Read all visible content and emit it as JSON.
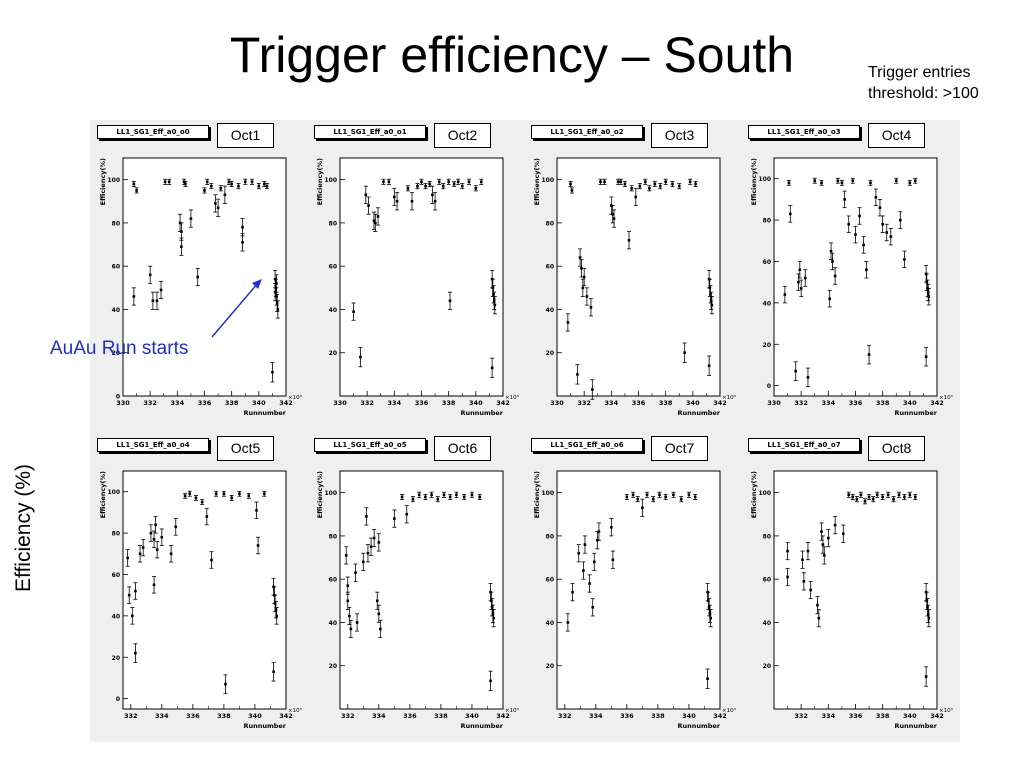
{
  "title": "Trigger efficiency – South",
  "note_lines": [
    "Trigger entries",
    "threshold: >100"
  ],
  "ylabel_slide": "Efficiency (%)",
  "annotation": {
    "text": "AuAu Run starts",
    "color": "#1f2fc8"
  },
  "colors": {
    "marker": "#000000",
    "frame": "#000000",
    "pad_bg": "#ffffff",
    "canvas_bg": "#efefef"
  },
  "chart_data": [
    {
      "type": "scatter",
      "name": "LL1_SG1_Eff_a0_o0",
      "label": "Oct1",
      "ylabel": "Efficiency(%)",
      "xlabel": "Runnumber",
      "x_multiplier": "×10³",
      "xlim": [
        330,
        342
      ],
      "ylim": [
        0,
        110
      ],
      "xticks": [
        330,
        332,
        334,
        336,
        338,
        340,
        342
      ],
      "yticks": [
        0,
        20,
        40,
        60,
        80,
        100
      ],
      "points": [
        [
          330.8,
          98
        ],
        [
          331.0,
          95
        ],
        [
          332.0,
          56
        ],
        [
          332.2,
          44
        ],
        [
          332.5,
          44
        ],
        [
          332.8,
          49
        ],
        [
          330.8,
          46
        ],
        [
          333.1,
          99
        ],
        [
          333.4,
          99
        ],
        [
          334.2,
          80
        ],
        [
          334.3,
          76
        ],
        [
          334.3,
          69
        ],
        [
          334.5,
          99
        ],
        [
          334.6,
          98
        ],
        [
          335.0,
          82
        ],
        [
          335.5,
          55
        ],
        [
          336.0,
          95
        ],
        [
          336.2,
          99
        ],
        [
          336.5,
          97
        ],
        [
          336.8,
          89
        ],
        [
          337.0,
          87
        ],
        [
          337.2,
          96
        ],
        [
          337.5,
          93
        ],
        [
          337.8,
          99
        ],
        [
          338.0,
          98
        ],
        [
          338.5,
          97
        ],
        [
          338.8,
          78
        ],
        [
          338.8,
          71
        ],
        [
          339.0,
          99
        ],
        [
          339.5,
          99
        ],
        [
          340.0,
          97
        ],
        [
          340.4,
          98
        ],
        [
          340.6,
          97
        ],
        [
          341.2,
          54
        ],
        [
          341.25,
          50
        ],
        [
          341.3,
          46
        ],
        [
          341.35,
          43
        ],
        [
          341.4,
          40
        ],
        [
          341.2,
          48
        ],
        [
          341.3,
          52
        ],
        [
          341.0,
          11
        ]
      ]
    },
    {
      "type": "scatter",
      "name": "LL1_SG1_Eff_a0_o1",
      "label": "Oct2",
      "ylabel": "Efficiency(%)",
      "xlabel": "Runnumber",
      "x_multiplier": "×10³",
      "xlim": [
        330,
        342
      ],
      "ylim": [
        0,
        110
      ],
      "xticks": [
        330,
        332,
        334,
        336,
        338,
        340,
        342
      ],
      "yticks": [
        20,
        40,
        60,
        80,
        100
      ],
      "points": [
        [
          331.0,
          39
        ],
        [
          331.5,
          18
        ],
        [
          331.9,
          93
        ],
        [
          332.1,
          88
        ],
        [
          332.5,
          81
        ],
        [
          332.6,
          80
        ],
        [
          332.8,
          83
        ],
        [
          333.2,
          99
        ],
        [
          333.6,
          99
        ],
        [
          334.0,
          92
        ],
        [
          334.2,
          90
        ],
        [
          335.0,
          96
        ],
        [
          335.3,
          90
        ],
        [
          335.7,
          97
        ],
        [
          336.0,
          99
        ],
        [
          336.3,
          97
        ],
        [
          336.6,
          98
        ],
        [
          336.8,
          93
        ],
        [
          337.0,
          90
        ],
        [
          337.3,
          99
        ],
        [
          337.6,
          97
        ],
        [
          338.0,
          99
        ],
        [
          338.4,
          98
        ],
        [
          338.1,
          44
        ],
        [
          338.7,
          99
        ],
        [
          339.0,
          97
        ],
        [
          339.5,
          99
        ],
        [
          340.0,
          96
        ],
        [
          340.4,
          99
        ],
        [
          341.2,
          54
        ],
        [
          341.25,
          50
        ],
        [
          341.3,
          47
        ],
        [
          341.35,
          44
        ],
        [
          341.4,
          42
        ],
        [
          341.2,
          13
        ]
      ]
    },
    {
      "type": "scatter",
      "name": "LL1_SG1_Eff_a0_o2",
      "label": "Oct3",
      "ylabel": "Efficiency(%)",
      "xlabel": "Runnumber",
      "x_multiplier": "×10³",
      "xlim": [
        330,
        342
      ],
      "ylim": [
        0,
        110
      ],
      "xticks": [
        330,
        332,
        334,
        336,
        338,
        340,
        342
      ],
      "yticks": [
        20,
        40,
        60,
        80,
        100
      ],
      "points": [
        [
          330.8,
          34
        ],
        [
          331.0,
          98
        ],
        [
          331.1,
          95
        ],
        [
          331.5,
          10
        ],
        [
          331.7,
          64
        ],
        [
          331.8,
          59
        ],
        [
          331.9,
          50
        ],
        [
          332.0,
          55
        ],
        [
          332.2,
          46
        ],
        [
          332.5,
          41
        ],
        [
          332.6,
          3
        ],
        [
          333.2,
          99
        ],
        [
          333.5,
          99
        ],
        [
          334.0,
          88
        ],
        [
          334.1,
          84
        ],
        [
          334.2,
          82
        ],
        [
          334.5,
          99
        ],
        [
          334.7,
          99
        ],
        [
          335.0,
          98
        ],
        [
          335.3,
          72
        ],
        [
          335.5,
          96
        ],
        [
          335.8,
          92
        ],
        [
          336.1,
          97
        ],
        [
          336.5,
          99
        ],
        [
          336.8,
          96
        ],
        [
          337.2,
          98
        ],
        [
          337.6,
          97
        ],
        [
          338.0,
          99
        ],
        [
          338.5,
          98
        ],
        [
          339.0,
          97
        ],
        [
          339.4,
          20
        ],
        [
          339.8,
          99
        ],
        [
          340.2,
          98
        ],
        [
          341.2,
          54
        ],
        [
          341.25,
          50
        ],
        [
          341.3,
          47
        ],
        [
          341.35,
          44
        ],
        [
          341.4,
          42
        ],
        [
          341.2,
          14
        ]
      ]
    },
    {
      "type": "scatter",
      "name": "LL1_SG1_Eff_a0_o3",
      "label": "Oct4",
      "ylabel": "Efficiency(%)",
      "xlabel": "Runnumber",
      "x_multiplier": "×10³",
      "xlim": [
        330,
        342
      ],
      "ylim": [
        -5,
        110
      ],
      "xticks": [
        330,
        332,
        334,
        336,
        338,
        340,
        342
      ],
      "yticks": [
        0,
        20,
        40,
        60,
        80,
        100
      ],
      "points": [
        [
          330.8,
          44
        ],
        [
          331.1,
          98
        ],
        [
          331.2,
          83
        ],
        [
          331.6,
          7
        ],
        [
          331.8,
          50
        ],
        [
          331.9,
          56
        ],
        [
          332.0,
          47
        ],
        [
          332.3,
          52
        ],
        [
          332.5,
          4
        ],
        [
          333.0,
          99
        ],
        [
          333.5,
          98
        ],
        [
          334.1,
          42
        ],
        [
          334.2,
          65
        ],
        [
          334.3,
          60
        ],
        [
          334.5,
          53
        ],
        [
          334.7,
          99
        ],
        [
          335.0,
          98
        ],
        [
          335.2,
          90
        ],
        [
          335.5,
          78
        ],
        [
          335.8,
          99
        ],
        [
          336.0,
          73
        ],
        [
          336.3,
          82
        ],
        [
          336.6,
          68
        ],
        [
          336.8,
          56
        ],
        [
          337.0,
          15
        ],
        [
          337.1,
          98
        ],
        [
          337.5,
          91
        ],
        [
          337.8,
          86
        ],
        [
          338.0,
          78
        ],
        [
          338.3,
          74
        ],
        [
          338.6,
          72
        ],
        [
          339.0,
          99
        ],
        [
          339.3,
          80
        ],
        [
          339.6,
          61
        ],
        [
          340.0,
          98
        ],
        [
          340.4,
          99
        ],
        [
          341.2,
          54
        ],
        [
          341.25,
          50
        ],
        [
          341.3,
          47
        ],
        [
          341.35,
          45
        ],
        [
          341.4,
          43
        ],
        [
          341.2,
          14
        ]
      ]
    },
    {
      "type": "scatter",
      "name": "LL1_SG1_Eff_a0_o4",
      "label": "Oct5",
      "ylabel": "Efficiency(%)",
      "xlabel": "Runnumber",
      "x_multiplier": "×10³",
      "xlim": [
        331.5,
        342
      ],
      "ylim": [
        -5,
        110
      ],
      "xticks": [
        332,
        334,
        336,
        338,
        340,
        342
      ],
      "yticks": [
        0,
        20,
        40,
        60,
        80,
        100
      ],
      "points": [
        [
          331.8,
          68
        ],
        [
          331.9,
          50
        ],
        [
          332.1,
          40
        ],
        [
          332.3,
          52
        ],
        [
          332.3,
          22
        ],
        [
          332.6,
          70
        ],
        [
          332.8,
          73
        ],
        [
          333.3,
          80
        ],
        [
          333.5,
          77
        ],
        [
          333.6,
          84
        ],
        [
          333.7,
          72
        ],
        [
          333.5,
          55
        ],
        [
          334.0,
          78
        ],
        [
          334.6,
          70
        ],
        [
          334.9,
          83
        ],
        [
          335.5,
          98
        ],
        [
          335.8,
          99
        ],
        [
          336.2,
          97
        ],
        [
          336.6,
          95
        ],
        [
          336.9,
          88
        ],
        [
          337.2,
          67
        ],
        [
          337.5,
          99
        ],
        [
          338.0,
          99
        ],
        [
          338.1,
          7
        ],
        [
          338.5,
          97
        ],
        [
          339.0,
          99
        ],
        [
          339.6,
          98
        ],
        [
          340.1,
          91
        ],
        [
          340.2,
          74
        ],
        [
          340.6,
          99
        ],
        [
          341.2,
          54
        ],
        [
          341.25,
          50
        ],
        [
          341.3,
          46
        ],
        [
          341.35,
          43
        ],
        [
          341.4,
          40
        ],
        [
          341.2,
          13
        ]
      ]
    },
    {
      "type": "scatter",
      "name": "LL1_SG1_Eff_a0_o5",
      "label": "Oct6",
      "ylabel": "Efficiency(%)",
      "xlabel": "Runnumber",
      "x_multiplier": "×10³",
      "xlim": [
        331.5,
        342
      ],
      "ylim": [
        0,
        110
      ],
      "xticks": [
        332,
        334,
        336,
        338,
        340,
        342
      ],
      "yticks": [
        20,
        40,
        60,
        80,
        100
      ],
      "points": [
        [
          331.9,
          71
        ],
        [
          332.0,
          57
        ],
        [
          332.0,
          50
        ],
        [
          332.1,
          43
        ],
        [
          332.2,
          37
        ],
        [
          332.5,
          63
        ],
        [
          332.6,
          40
        ],
        [
          333.0,
          68
        ],
        [
          333.2,
          89
        ],
        [
          333.3,
          72
        ],
        [
          333.5,
          75
        ],
        [
          333.7,
          79
        ],
        [
          334.0,
          77
        ],
        [
          333.9,
          50
        ],
        [
          334.0,
          44
        ],
        [
          334.1,
          37
        ],
        [
          335.0,
          88
        ],
        [
          335.5,
          98
        ],
        [
          335.8,
          90
        ],
        [
          336.2,
          97
        ],
        [
          336.6,
          99
        ],
        [
          337.0,
          98
        ],
        [
          337.4,
          99
        ],
        [
          337.8,
          97
        ],
        [
          338.2,
          99
        ],
        [
          338.6,
          98
        ],
        [
          339.0,
          99
        ],
        [
          339.5,
          98
        ],
        [
          340.0,
          99
        ],
        [
          340.5,
          98
        ],
        [
          341.2,
          54
        ],
        [
          341.25,
          50
        ],
        [
          341.3,
          47
        ],
        [
          341.35,
          44
        ],
        [
          341.4,
          42
        ],
        [
          341.2,
          13
        ]
      ]
    },
    {
      "type": "scatter",
      "name": "LL1_SG1_Eff_a0_o6",
      "label": "Oct7",
      "ylabel": "Efficiency(%)",
      "xlabel": "Runnumber",
      "x_multiplier": "×10³",
      "xlim": [
        331.5,
        342
      ],
      "ylim": [
        0,
        110
      ],
      "xticks": [
        332,
        334,
        336,
        338,
        340,
        342
      ],
      "yticks": [
        20,
        40,
        60,
        80,
        100
      ],
      "points": [
        [
          332.2,
          40
        ],
        [
          332.5,
          54
        ],
        [
          332.9,
          72
        ],
        [
          333.2,
          64
        ],
        [
          333.3,
          76
        ],
        [
          333.6,
          58
        ],
        [
          333.8,
          47
        ],
        [
          333.9,
          68
        ],
        [
          334.1,
          78
        ],
        [
          334.2,
          82
        ],
        [
          335.0,
          84
        ],
        [
          335.1,
          69
        ],
        [
          336.0,
          98
        ],
        [
          336.4,
          99
        ],
        [
          336.7,
          97
        ],
        [
          337.0,
          93
        ],
        [
          337.3,
          99
        ],
        [
          337.7,
          97
        ],
        [
          338.1,
          99
        ],
        [
          338.5,
          98
        ],
        [
          339.0,
          99
        ],
        [
          339.5,
          97
        ],
        [
          340.0,
          99
        ],
        [
          340.4,
          98
        ],
        [
          341.2,
          54
        ],
        [
          341.25,
          50
        ],
        [
          341.3,
          47
        ],
        [
          341.35,
          44
        ],
        [
          341.4,
          42
        ],
        [
          341.2,
          14
        ]
      ]
    },
    {
      "type": "scatter",
      "name": "LL1_SG1_Eff_a0_o7",
      "label": "Oct8",
      "ylabel": "Efficiency(%)",
      "xlabel": "Runnumber",
      "x_multiplier": "×10³",
      "xlim": [
        330,
        342
      ],
      "ylim": [
        0,
        110
      ],
      "xticks": [
        332,
        334,
        336,
        338,
        340,
        342
      ],
      "yticks": [
        20,
        40,
        60,
        80,
        100
      ],
      "points": [
        [
          331.0,
          73
        ],
        [
          331.0,
          61
        ],
        [
          332.1,
          69
        ],
        [
          332.2,
          59
        ],
        [
          332.5,
          73
        ],
        [
          332.7,
          55
        ],
        [
          333.2,
          48
        ],
        [
          333.3,
          42
        ],
        [
          333.5,
          82
        ],
        [
          333.6,
          76
        ],
        [
          333.7,
          71
        ],
        [
          334.0,
          79
        ],
        [
          334.5,
          85
        ],
        [
          335.1,
          81
        ],
        [
          335.5,
          99
        ],
        [
          335.8,
          98
        ],
        [
          336.1,
          97
        ],
        [
          336.4,
          99
        ],
        [
          336.7,
          96
        ],
        [
          337.0,
          98
        ],
        [
          337.3,
          97
        ],
        [
          337.6,
          99
        ],
        [
          338.0,
          98
        ],
        [
          338.4,
          99
        ],
        [
          338.8,
          97
        ],
        [
          339.2,
          99
        ],
        [
          339.6,
          98
        ],
        [
          340.0,
          99
        ],
        [
          340.4,
          98
        ],
        [
          341.2,
          54
        ],
        [
          341.25,
          50
        ],
        [
          341.3,
          47
        ],
        [
          341.35,
          44
        ],
        [
          341.4,
          42
        ],
        [
          341.2,
          15
        ]
      ]
    }
  ]
}
